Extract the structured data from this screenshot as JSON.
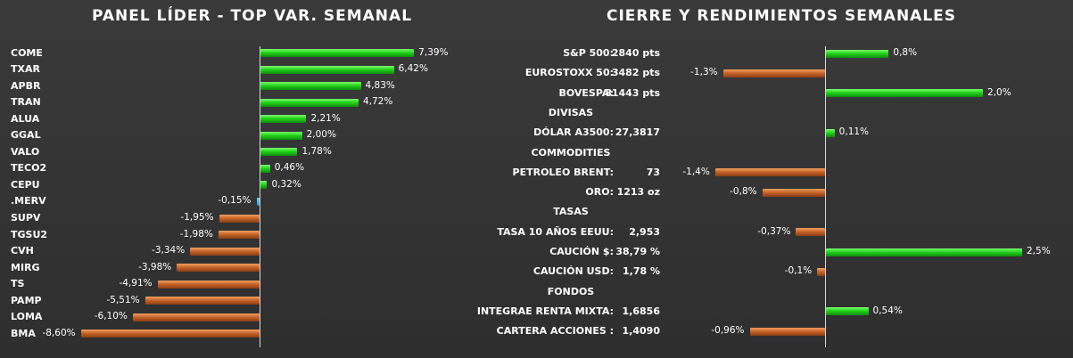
{
  "chart_data": [
    {
      "type": "bar",
      "orientation": "horizontal",
      "title": "PANEL LÍDER - TOP VAR. SEMANAL",
      "categories": [
        "COME",
        "TXAR",
        "APBR",
        "TRAN",
        "ALUA",
        "GGAL",
        "VALO",
        "TECO2",
        "CEPU",
        ".MERV",
        "SUPV",
        "TGSU2",
        "CVH",
        "MIRG",
        "TS",
        "PAMP",
        "LOMA",
        "BMA"
      ],
      "values": [
        7.39,
        6.42,
        4.83,
        4.72,
        2.21,
        2.0,
        1.78,
        0.46,
        0.32,
        -0.15,
        -1.95,
        -1.98,
        -3.34,
        -3.98,
        -4.91,
        -5.51,
        -6.1,
        -8.6
      ],
      "value_labels": [
        "7,39%",
        "6,42%",
        "4,83%",
        "4,72%",
        "2,21%",
        "2,00%",
        "1,78%",
        "0,46%",
        "0,32%",
        "-0,15%",
        "-1,95%",
        "-1,98%",
        "-3,34%",
        "-3,98%",
        "-4,91%",
        "-5,51%",
        "-6,10%",
        "-8,60%"
      ],
      "colors": {
        "positive": "#22d41a",
        "negative": "#c9652a",
        "index": "#1f8fd0"
      },
      "highlight_category": ".MERV"
    },
    {
      "type": "bar",
      "orientation": "horizontal",
      "title": "CIERRE Y RENDIMIENTOS SEMANALES",
      "rows": [
        {
          "kind": "item",
          "label": "S&P 500:",
          "close": "2840 pts",
          "value": 0.8,
          "value_label": "0,8%"
        },
        {
          "kind": "item",
          "label": "EUROSTOXX 50:",
          "close": "3482 pts",
          "value": -1.3,
          "value_label": "-1,3%"
        },
        {
          "kind": "item",
          "label": "BOVESPA:",
          "close": "81443 pts",
          "value": 2.0,
          "value_label": "2,0%"
        },
        {
          "kind": "section",
          "label": "DIVISAS"
        },
        {
          "kind": "item",
          "label": "DÓLAR A3500:",
          "close": "27,3817",
          "value": 0.11,
          "value_label": "0,11%"
        },
        {
          "kind": "section",
          "label": "COMMODITIES"
        },
        {
          "kind": "item",
          "label": "PETROLEO BRENT:",
          "close": "73",
          "value": -1.4,
          "value_label": "-1,4%"
        },
        {
          "kind": "item",
          "label": "ORO:",
          "close": "1213 oz",
          "value": -0.8,
          "value_label": "-0,8%"
        },
        {
          "kind": "section",
          "label": "TASAS"
        },
        {
          "kind": "item",
          "label": "TASA 10 AÑOS EEUU:",
          "close": "2,953",
          "value": -0.37,
          "value_label": "-0,37%"
        },
        {
          "kind": "item",
          "label": "CAUCIÓN $:",
          "close": "38,79 %",
          "value": 2.5,
          "value_label": "2,5%"
        },
        {
          "kind": "item",
          "label": "CAUCIÓN USD:",
          "close": "1,78 %",
          "value": -0.1,
          "value_label": "-0,1%"
        },
        {
          "kind": "section",
          "label": "FONDOS"
        },
        {
          "kind": "item",
          "label": "INTEGRAE RENTA MIXTA:",
          "close": "1,6856",
          "value": 0.54,
          "value_label": "0,54%"
        },
        {
          "kind": "item",
          "label": "CARTERA ACCIONES :",
          "close": "1,4090",
          "value": -0.96,
          "value_label": "-0,96%"
        }
      ],
      "colors": {
        "positive": "#22d41a",
        "negative": "#c9652a"
      }
    }
  ]
}
